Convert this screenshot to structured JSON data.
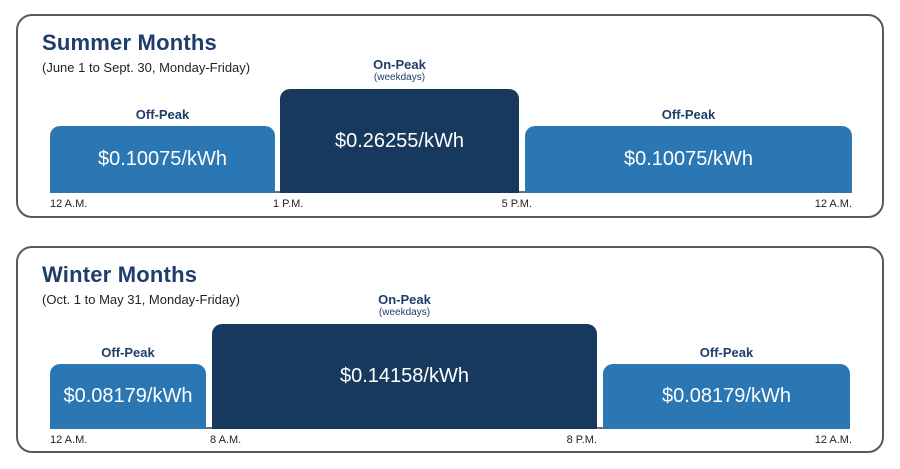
{
  "colors": {
    "off_peak_bar": "#2b77b4",
    "on_peak_bar": "#17395e",
    "heading_navy": "#1e3d6b",
    "body_text": "#231f20",
    "panel_border": "#58595b",
    "bar_value_text": "#ffffff",
    "axis_baseline": "#6d6e71"
  },
  "charts": [
    {
      "title": "Summer Months",
      "subtitle": "(June 1 to Sept. 30, Monday-Friday)",
      "segments": [
        {
          "label": "Off-Peak",
          "rate": "$0.10075/kWh"
        },
        {
          "label": "On-Peak",
          "sublabel": "(weekdays)",
          "rate": "$0.26255/kWh"
        },
        {
          "label": "Off-Peak",
          "rate": "$0.10075/kWh"
        }
      ],
      "ticks": [
        "12 A.M.",
        "1 P.M.",
        "5 P.M.",
        "12 A.M."
      ]
    },
    {
      "title": "Winter Months",
      "subtitle": "(Oct. 1 to May 31, Monday-Friday)",
      "segments": [
        {
          "label": "Off-Peak",
          "rate": "$0.08179/kWh"
        },
        {
          "label": "On-Peak",
          "sublabel": "(weekdays)",
          "rate": "$0.14158/kWh"
        },
        {
          "label": "Off-Peak",
          "rate": "$0.08179/kWh"
        }
      ],
      "ticks": [
        "12 A.M.",
        "8 A.M.",
        "8 P.M.",
        "12 A.M."
      ]
    }
  ],
  "chart_data": [
    {
      "type": "bar",
      "title": "Summer Months",
      "subtitle": "(June 1 to Sept. 30, Monday-Friday)",
      "unit": "USD per kWh",
      "x_ticks": [
        "12 A.M.",
        "1 P.M.",
        "5 P.M.",
        "12 A.M."
      ],
      "segments": [
        {
          "period": "Off-Peak",
          "start": "12 A.M.",
          "end": "1 P.M.",
          "rate_usd_per_kwh": 0.10075,
          "label": "$0.10075/kWh"
        },
        {
          "period": "On-Peak (weekdays)",
          "start": "1 P.M.",
          "end": "5 P.M.",
          "rate_usd_per_kwh": 0.26255,
          "label": "$0.26255/kWh"
        },
        {
          "period": "Off-Peak",
          "start": "5 P.M.",
          "end": "12 A.M.",
          "rate_usd_per_kwh": 0.10075,
          "label": "$0.10075/kWh"
        }
      ]
    },
    {
      "type": "bar",
      "title": "Winter Months",
      "subtitle": "(Oct. 1 to May 31, Monday-Friday)",
      "unit": "USD per kWh",
      "x_ticks": [
        "12 A.M.",
        "8 A.M.",
        "8 P.M.",
        "12 A.M."
      ],
      "segments": [
        {
          "period": "Off-Peak",
          "start": "12 A.M.",
          "end": "8 A.M.",
          "rate_usd_per_kwh": 0.08179,
          "label": "$0.08179/kWh"
        },
        {
          "period": "On-Peak (weekdays)",
          "start": "8 A.M.",
          "end": "8 P.M.",
          "rate_usd_per_kwh": 0.14158,
          "label": "$0.14158/kWh"
        },
        {
          "period": "Off-Peak",
          "start": "8 P.M.",
          "end": "12 A.M.",
          "rate_usd_per_kwh": 0.08179,
          "label": "$0.08179/kWh"
        }
      ]
    }
  ]
}
